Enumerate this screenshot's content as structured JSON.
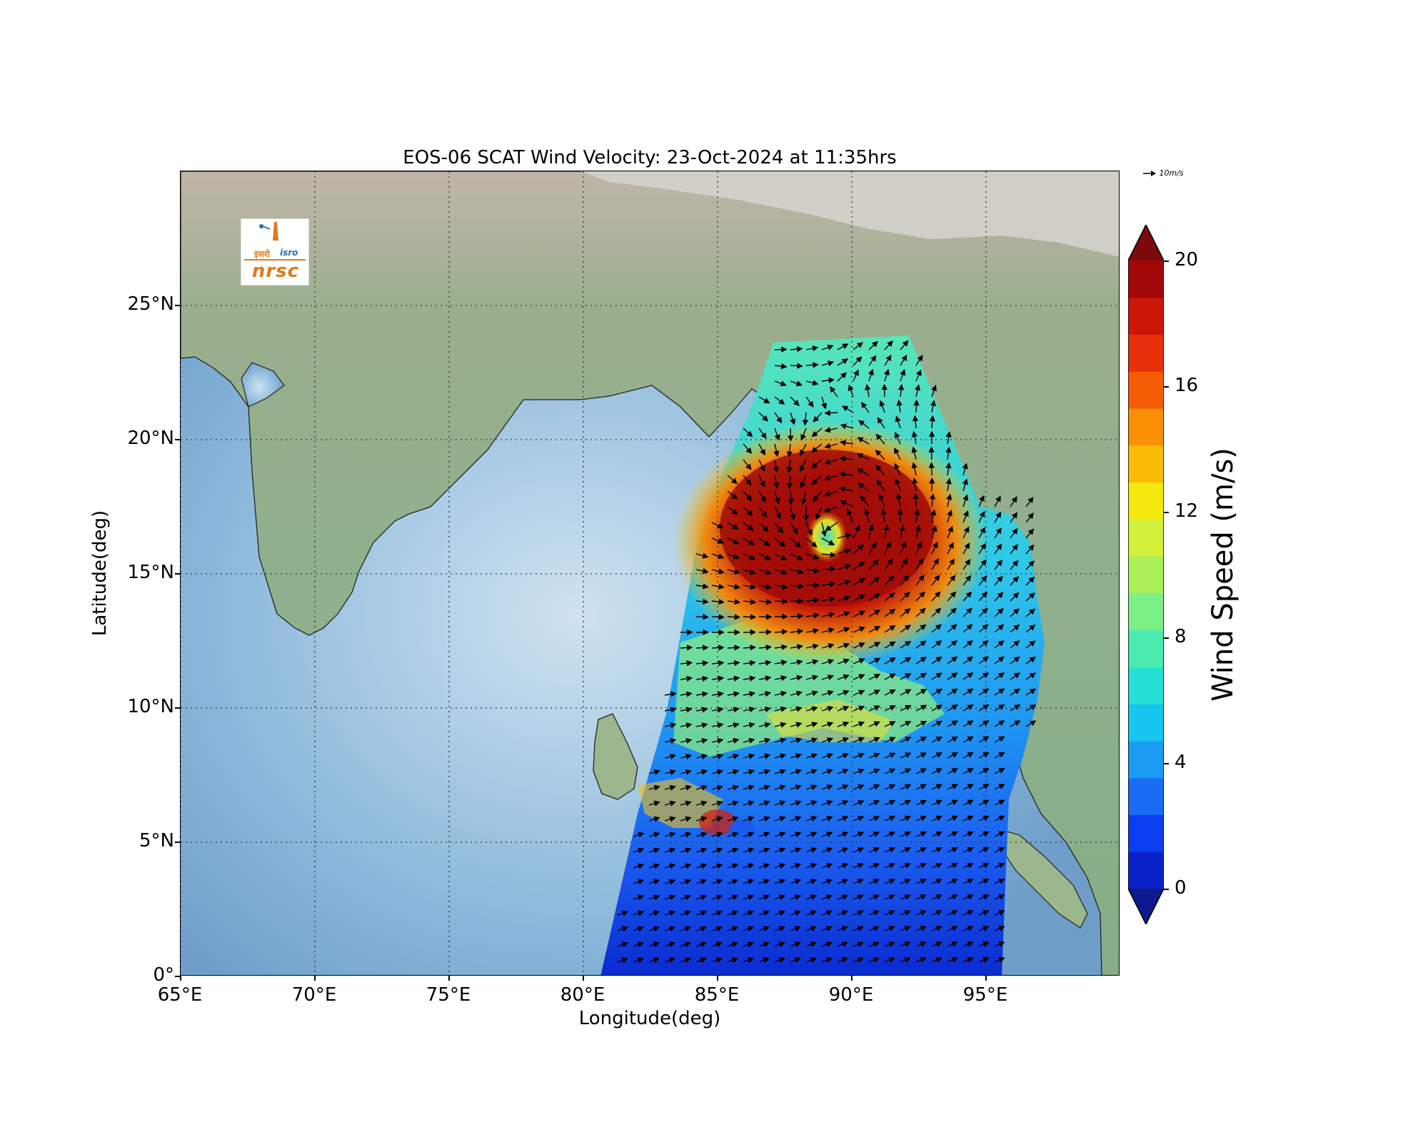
{
  "title": "EOS-06 SCAT Wind Velocity: 23-Oct-2024 at 11:35hrs",
  "xlabel": "Longitude(deg)",
  "ylabel": "Latitude(deg)",
  "xticks": [
    "65°E",
    "70°E",
    "75°E",
    "80°E",
    "85°E",
    "90°E",
    "95°E"
  ],
  "yticks": [
    "25°N",
    "20°N",
    "15°N",
    "10°N",
    "5°N",
    "0°"
  ],
  "logo": {
    "hindi": "इसरो",
    "isro": "isro",
    "nrsc": "nrsc"
  },
  "reference_vector": {
    "label": "10m/s"
  },
  "colorbar": {
    "label": "Wind Speed (m/s)",
    "ticks": [
      "20",
      "16",
      "12",
      "8",
      "4",
      "0"
    ],
    "range": [
      0,
      20
    ],
    "extend": "both",
    "colormap": "jet",
    "colors": [
      "#0b1a8c",
      "#0a22c8",
      "#0b3ef0",
      "#1a6cf5",
      "#1b9cf2",
      "#18c4f0",
      "#27e0d4",
      "#4cebb0",
      "#7cef86",
      "#a9f05a",
      "#d3f03a",
      "#f4e80e",
      "#fbbc07",
      "#fb8f06",
      "#f45d06",
      "#e8300a",
      "#cc1608",
      "#a30808",
      "#7d0a0a"
    ]
  },
  "chart_data": {
    "type": "map",
    "title": "EOS-06 SCAT Wind Velocity: 23-Oct-2024 at 11:35hrs",
    "xlabel": "Longitude(deg)",
    "ylabel": "Latitude(deg)",
    "xlim": [
      65,
      100
    ],
    "ylim": [
      0,
      30
    ],
    "grid": true,
    "features": [
      "cyclonic wind circulation centered near 89°E, 17°N with wind speeds above 18 m/s",
      "scatterometer swath over Bay of Bengal and eastern Indian Ocean"
    ],
    "cyclone_center": {
      "lon": 89.5,
      "lat": 16.8
    },
    "colorbar_range": [
      0,
      20
    ]
  }
}
